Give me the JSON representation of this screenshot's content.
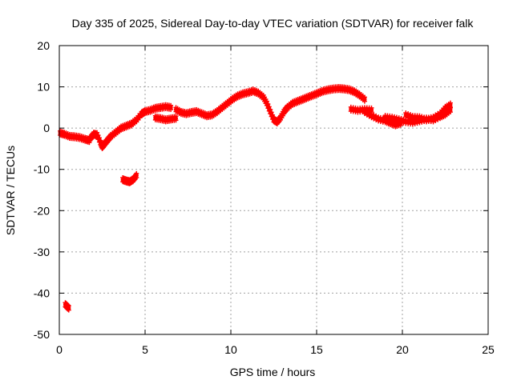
{
  "chart_data": {
    "type": "scatter",
    "title": "Day 335 of 2025, Sidereal Day-to-day VTEC variation (SDTVAR) for receiver falk",
    "xlabel": "GPS time / hours",
    "ylabel": "SDTVAR / TECUs",
    "xlim": [
      0,
      25
    ],
    "ylim": [
      -50,
      20
    ],
    "xticks": [
      "0",
      "5",
      "10",
      "15",
      "20",
      "25"
    ],
    "yticks": [
      "20",
      "10",
      "0",
      "-10",
      "-20",
      "-30",
      "-40",
      "-50"
    ],
    "grid": true,
    "colors": {
      "series": "#ff0000",
      "grid": "#a0a0a0",
      "axis": "#000000"
    },
    "series": [
      {
        "name": "SDTVAR",
        "band": 1.0,
        "segments": [
          {
            "x": [
              0.05,
              0.3,
              0.6,
              0.9,
              1.2,
              1.5,
              1.75
            ],
            "y": [
              -1.2,
              -1.5,
              -2.0,
              -2.1,
              -2.3,
              -2.7,
              -3.0
            ]
          },
          {
            "x": [
              1.8,
              2.0,
              2.2,
              2.4,
              2.5,
              2.6,
              2.8,
              3.0,
              3.3,
              3.6,
              3.9,
              4.2,
              4.5,
              4.8,
              5.0,
              5.3,
              5.6,
              5.9,
              6.2,
              6.5
            ],
            "y": [
              -2.5,
              -1.5,
              -1.6,
              -3.5,
              -4.5,
              -4.0,
              -3.0,
              -2.0,
              -1.0,
              0.0,
              0.5,
              1.0,
              2.0,
              3.5,
              4.0,
              4.3,
              4.8,
              5.0,
              5.2,
              5.0
            ]
          },
          {
            "x": [
              5.6,
              5.9,
              6.2,
              6.5,
              6.8
            ],
            "y": [
              2.5,
              2.3,
              2.0,
              2.2,
              2.4
            ]
          },
          {
            "x": [
              6.8,
              7.1,
              7.4,
              7.7,
              8.0,
              8.3,
              8.6,
              8.9,
              9.2,
              9.5,
              9.8,
              10.1,
              10.4,
              10.7,
              11.0,
              11.3,
              11.6,
              11.9,
              12.1,
              12.3,
              12.5,
              12.7,
              12.9,
              13.1,
              13.3,
              13.6,
              13.9,
              14.2,
              14.5,
              14.8,
              15.1,
              15.4,
              15.7,
              16.0,
              16.3,
              16.6,
              16.9,
              17.2,
              17.5,
              17.8
            ],
            "y": [
              4.5,
              3.8,
              3.5,
              3.8,
              4.0,
              3.5,
              3.0,
              3.2,
              4.0,
              5.0,
              6.0,
              7.0,
              7.8,
              8.3,
              8.6,
              9.0,
              8.5,
              7.5,
              6.0,
              4.0,
              2.0,
              1.5,
              2.5,
              4.0,
              5.0,
              6.0,
              6.5,
              7.0,
              7.5,
              8.0,
              8.5,
              9.0,
              9.3,
              9.5,
              9.6,
              9.5,
              9.3,
              8.8,
              8.0,
              7.0
            ]
          },
          {
            "x": [
              17.0,
              17.4,
              17.8,
              18.2
            ],
            "y": [
              4.6,
              4.3,
              4.5,
              4.4
            ]
          },
          {
            "x": [
              17.8,
              18.2,
              18.6,
              19.0,
              19.3,
              19.6,
              19.9
            ],
            "y": [
              4.0,
              3.0,
              2.2,
              1.8,
              1.3,
              0.8,
              1.2
            ]
          },
          {
            "x": [
              19.0,
              19.4,
              19.8,
              20.2,
              20.6,
              21.0,
              21.4,
              21.8,
              22.2,
              22.5,
              22.8
            ],
            "y": [
              2.6,
              2.4,
              2.0,
              1.6,
              1.4,
              1.8,
              2.2,
              2.0,
              2.8,
              3.4,
              4.4
            ]
          },
          {
            "x": [
              20.2,
              20.6,
              21.0,
              21.4,
              21.8,
              22.2,
              22.5,
              22.8
            ],
            "y": [
              3.2,
              2.6,
              2.5,
              2.0,
              2.4,
              3.4,
              4.8,
              5.6
            ]
          },
          {
            "x": [
              3.7,
              3.9,
              4.1,
              4.3,
              4.5
            ],
            "y": [
              -12.5,
              -12.8,
              -13.0,
              -12.5,
              -11.5
            ]
          },
          {
            "x": [
              0.35,
              0.45,
              0.55
            ],
            "y": [
              -42.8,
              -43.2,
              -43.6
            ]
          }
        ]
      }
    ]
  }
}
